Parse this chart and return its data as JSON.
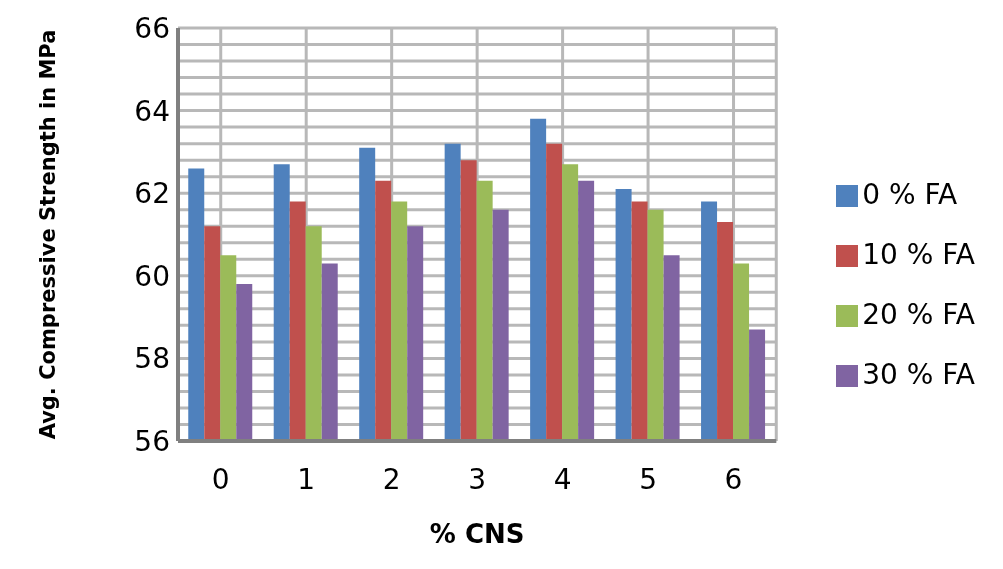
{
  "chart_data": {
    "type": "bar",
    "xlabel": "% CNS",
    "ylabel": "Avg. Compressive Strength in MPa",
    "categories": [
      "0",
      "1",
      "2",
      "3",
      "4",
      "5",
      "6"
    ],
    "series": [
      {
        "name": "0 % FA",
        "color": "#4f81bd",
        "values": [
          62.6,
          62.7,
          63.1,
          63.2,
          63.8,
          62.1,
          61.8
        ]
      },
      {
        "name": "10 % FA",
        "color": "#c0504d",
        "values": [
          61.2,
          61.8,
          62.3,
          62.8,
          63.2,
          61.8,
          61.3
        ]
      },
      {
        "name": "20 % FA",
        "color": "#9bbb59",
        "values": [
          60.5,
          61.2,
          61.8,
          62.3,
          62.7,
          61.6,
          60.3
        ]
      },
      {
        "name": "30 % FA",
        "color": "#8064a2",
        "values": [
          59.8,
          60.3,
          61.2,
          61.6,
          62.3,
          60.5,
          58.7
        ]
      }
    ],
    "ylim": [
      56,
      66
    ],
    "yticks": [
      56,
      {
        "value": 56.4,
        "label": null
      },
      {
        "value": 56.8,
        "label": null
      },
      {
        "value": 57.2,
        "label": null
      },
      {
        "value": 57.6,
        "label": null
      },
      58,
      {
        "value": 58.4,
        "label": null
      },
      {
        "value": 58.8,
        "label": null
      },
      {
        "value": 59.2,
        "label": null
      },
      {
        "value": 59.6,
        "label": null
      },
      60,
      {
        "value": 60.4,
        "label": null
      },
      {
        "value": 60.8,
        "label": null
      },
      {
        "value": 61.2,
        "label": null
      },
      {
        "value": 61.6,
        "label": null
      },
      62,
      {
        "value": 62.4,
        "label": null
      },
      {
        "value": 62.8,
        "label": null
      },
      {
        "value": 63.2,
        "label": null
      },
      {
        "value": 63.6,
        "label": null
      },
      64,
      {
        "value": 64.4,
        "label": null
      },
      {
        "value": 64.8,
        "label": null
      },
      {
        "value": 65.2,
        "label": null
      },
      {
        "value": 65.6,
        "label": null
      },
      66
    ],
    "grid": true,
    "legend": "right"
  }
}
